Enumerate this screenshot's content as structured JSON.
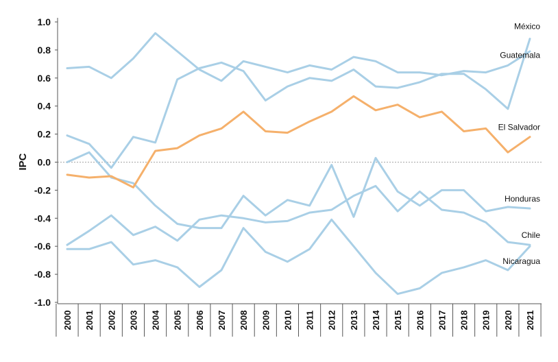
{
  "chart_data": {
    "type": "line",
    "title": "",
    "xlabel": "",
    "ylabel": "IPC",
    "ylim": [
      -1.0,
      1.0
    ],
    "yticks": [
      "1.0",
      "0.8",
      "0.6",
      "0.4",
      "0.2",
      "0.0",
      "-0.2",
      "-0.4",
      "-0.6",
      "-0.8",
      "-1.0"
    ],
    "ytick_values": [
      1.0,
      0.8,
      0.6,
      0.4,
      0.2,
      0.0,
      -0.2,
      -0.4,
      -0.6,
      -0.8,
      -1.0
    ],
    "x": [
      "2000",
      "2001",
      "2002",
      "2003",
      "2004",
      "2005",
      "2006",
      "2007",
      "2008",
      "2009",
      "2010",
      "2011",
      "2012",
      "2013",
      "2014",
      "2015",
      "2016",
      "2017",
      "2018",
      "2019",
      "2020",
      "2021"
    ],
    "grid": false,
    "zero_line": "dotted",
    "colors": {
      "highlight": "#f5b06b",
      "other": "#a9cfe6"
    },
    "series": [
      {
        "name": "México",
        "highlight": false,
        "values": [
          0.19,
          0.13,
          -0.04,
          0.18,
          0.14,
          0.59,
          0.67,
          0.71,
          0.65,
          0.44,
          0.54,
          0.6,
          0.58,
          0.66,
          0.54,
          0.53,
          0.57,
          0.63,
          0.63,
          0.52,
          0.38,
          0.88
        ]
      },
      {
        "name": "Guatemala",
        "highlight": false,
        "values": [
          0.67,
          0.68,
          0.6,
          0.74,
          0.92,
          0.79,
          0.66,
          0.58,
          0.72,
          0.68,
          0.64,
          0.69,
          0.66,
          0.75,
          0.72,
          0.64,
          0.64,
          0.62,
          0.65,
          0.64,
          0.69,
          0.79
        ]
      },
      {
        "name": "El Salvador",
        "highlight": true,
        "values": [
          -0.09,
          -0.11,
          -0.1,
          -0.18,
          0.08,
          0.1,
          0.19,
          0.24,
          0.36,
          0.22,
          0.21,
          0.29,
          0.36,
          0.47,
          0.37,
          0.41,
          0.32,
          0.36,
          0.22,
          0.24,
          0.07,
          0.18
        ]
      },
      {
        "name": "Honduras",
        "highlight": false,
        "values": [
          0.0,
          0.07,
          -0.11,
          -0.15,
          -0.31,
          -0.44,
          -0.47,
          -0.47,
          -0.24,
          -0.38,
          -0.27,
          -0.31,
          -0.02,
          -0.39,
          0.03,
          -0.21,
          -0.31,
          -0.2,
          -0.2,
          -0.35,
          -0.32,
          -0.33
        ]
      },
      {
        "name": "Chile",
        "highlight": false,
        "values": [
          -0.59,
          -0.49,
          -0.38,
          -0.52,
          -0.46,
          -0.56,
          -0.41,
          -0.38,
          -0.4,
          -0.43,
          -0.42,
          -0.36,
          -0.34,
          -0.24,
          -0.17,
          -0.35,
          -0.21,
          -0.34,
          -0.36,
          -0.43,
          -0.57,
          -0.59
        ]
      },
      {
        "name": "Nicaragua",
        "highlight": false,
        "values": [
          -0.62,
          -0.62,
          -0.57,
          -0.73,
          -0.7,
          -0.75,
          -0.89,
          -0.77,
          -0.47,
          -0.64,
          -0.71,
          -0.62,
          -0.41,
          -0.6,
          -0.79,
          -0.94,
          -0.9,
          -0.79,
          -0.75,
          -0.7,
          -0.77,
          -0.6
        ]
      }
    ]
  }
}
